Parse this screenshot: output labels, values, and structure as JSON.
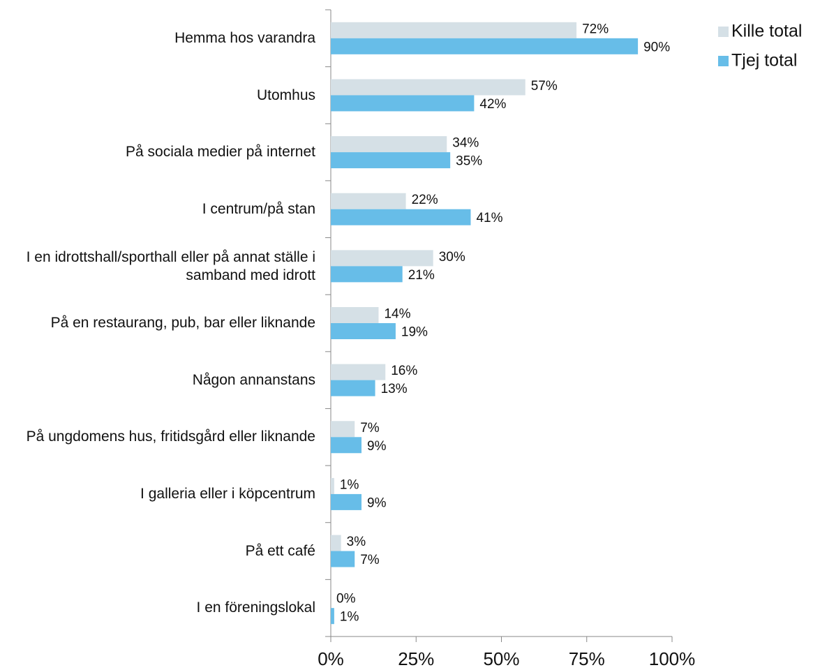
{
  "chart_data": {
    "type": "bar",
    "orientation": "horizontal",
    "categories": [
      "Hemma hos varandra",
      "Utomhus",
      "På sociala medier på internet",
      "I centrum/på stan",
      "I en idrottshall/sporthall eller på annat ställe i samband med idrott",
      "På en restaurang, pub, bar eller liknande",
      "Någon annanstans",
      "På ungdomens hus, fritidsgård eller liknande",
      "I galleria eller i köpcentrum",
      "På ett café",
      "I en föreningslokal"
    ],
    "series": [
      {
        "name": "Kille total",
        "color": "#d5e0e6",
        "values": [
          72,
          57,
          34,
          22,
          30,
          14,
          16,
          7,
          1,
          3,
          0
        ],
        "value_labels": [
          "72%",
          "57%",
          "34%",
          "22%",
          "30%",
          "14%",
          "16%",
          "7%",
          "1%",
          "3%",
          "0%"
        ]
      },
      {
        "name": "Tjej total",
        "color": "#67bde8",
        "values": [
          90,
          42,
          35,
          41,
          21,
          19,
          13,
          9,
          9,
          7,
          1
        ],
        "value_labels": [
          "90%",
          "42%",
          "35%",
          "41%",
          "21%",
          "19%",
          "13%",
          "9%",
          "9%",
          "7%",
          "1%"
        ]
      }
    ],
    "xlim": [
      0,
      100
    ],
    "xticks": [
      {
        "value": 0,
        "label": "0%"
      },
      {
        "value": 25,
        "label": "25%"
      },
      {
        "value": 50,
        "label": "50%"
      },
      {
        "value": 75,
        "label": "75%"
      },
      {
        "value": 100,
        "label": "100%"
      }
    ],
    "legend": "top-right"
  }
}
